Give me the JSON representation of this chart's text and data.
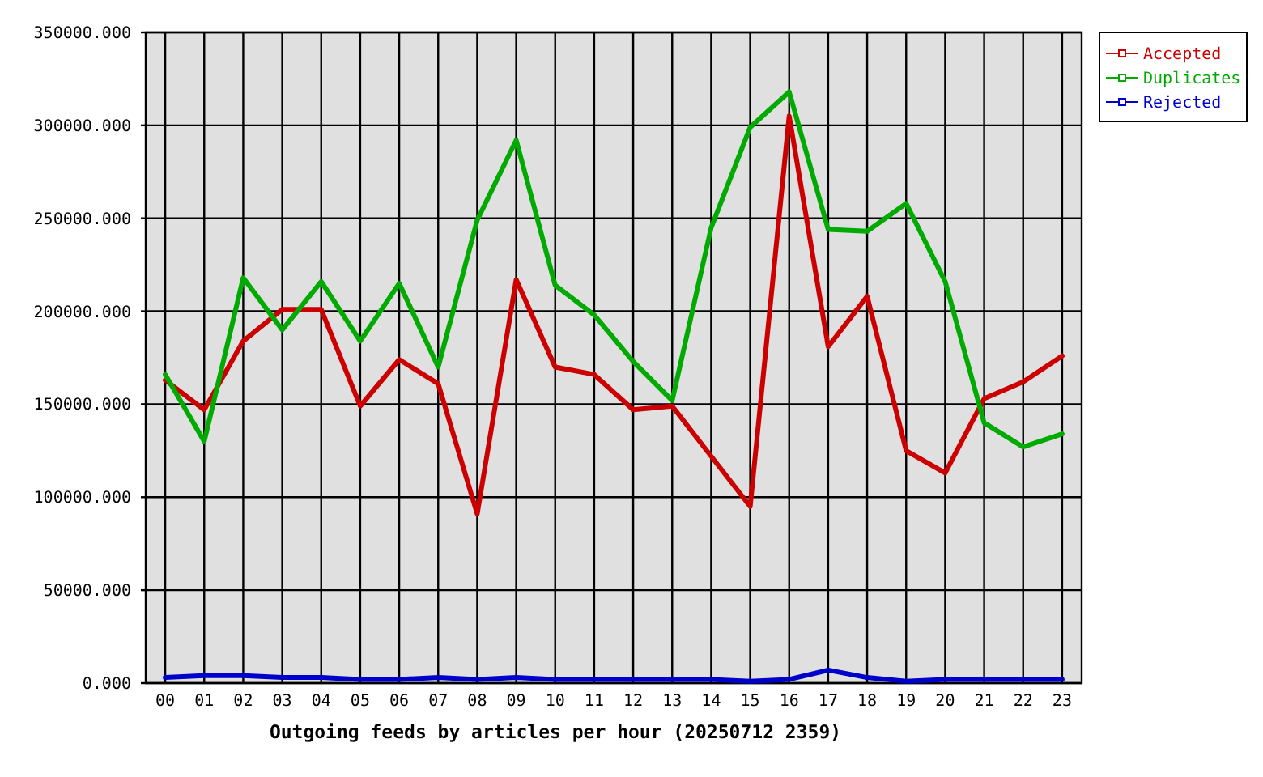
{
  "chart_data": {
    "type": "line",
    "xlabel": "Outgoing feeds by articles per hour (20250712 2359)",
    "categories": [
      "00",
      "01",
      "02",
      "03",
      "04",
      "05",
      "06",
      "07",
      "08",
      "09",
      "10",
      "11",
      "12",
      "13",
      "14",
      "15",
      "16",
      "17",
      "18",
      "19",
      "20",
      "21",
      "22",
      "23"
    ],
    "series": [
      {
        "name": "Accepted",
        "color": "#cc0000",
        "values": [
          163000,
          147000,
          184000,
          201000,
          201000,
          149000,
          174000,
          161000,
          91000,
          217000,
          170000,
          166000,
          147000,
          149000,
          122000,
          95000,
          305000,
          181000,
          208000,
          125000,
          113000,
          153000,
          162000,
          176000
        ]
      },
      {
        "name": "Duplicates",
        "color": "#00aa00",
        "values": [
          166000,
          130000,
          218000,
          190000,
          216000,
          184000,
          215000,
          170000,
          249000,
          292000,
          214000,
          198000,
          173000,
          152000,
          245000,
          299000,
          318000,
          244000,
          243000,
          258000,
          216000,
          140000,
          127000,
          134000
        ]
      },
      {
        "name": "Rejected",
        "color": "#0000cc",
        "values": [
          3000,
          4000,
          4000,
          3000,
          3000,
          2000,
          2000,
          3000,
          2000,
          3000,
          2000,
          2000,
          2000,
          2000,
          2000,
          1000,
          2000,
          7000,
          3000,
          1000,
          2000,
          2000,
          2000,
          2000
        ]
      }
    ],
    "ylim": [
      0,
      350000
    ],
    "yticks": [
      {
        "value": 0,
        "label": "0.000"
      },
      {
        "value": 50000,
        "label": "50000.000"
      },
      {
        "value": 100000,
        "label": "100000.000"
      },
      {
        "value": 150000,
        "label": "150000.000"
      },
      {
        "value": 200000,
        "label": "200000.000"
      },
      {
        "value": 250000,
        "label": "250000.000"
      },
      {
        "value": 300000,
        "label": "300000.000"
      },
      {
        "value": 350000,
        "label": "350000.000"
      }
    ],
    "grid": true,
    "legend": "top right"
  }
}
